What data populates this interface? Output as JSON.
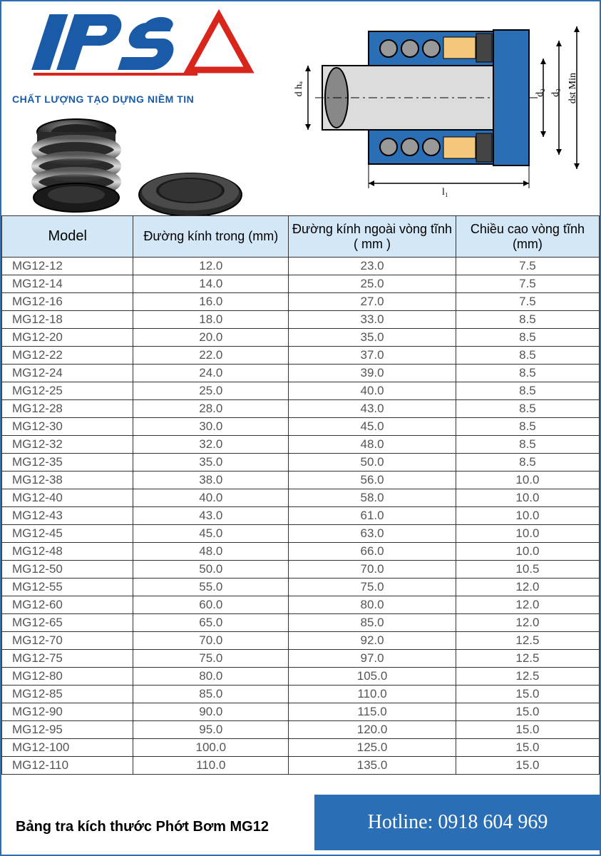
{
  "logo": {
    "text": "IPS",
    "tagline": "CHẤT LƯỢNG TẠO DỰNG NIỀM TIN",
    "text_color": "#1a5ba8",
    "triangle_color": "#d9261c"
  },
  "diagram": {
    "labels": {
      "d_ha": "d hₐ",
      "d2": "d₂",
      "d3": "d₃",
      "dst_min": "dst Min",
      "l1": "l₁"
    },
    "colors": {
      "body": "#2a6fb5",
      "shaft": "#c8c8c8",
      "outline": "#000000",
      "rollers": "#7a7a7a"
    }
  },
  "table": {
    "header_bg": "#d4e7f7",
    "columns": [
      "Model",
      "Đường kính trong (mm)",
      "Đường kính ngoài vòng tĩnh ( mm )",
      "Chiều cao vòng tĩnh (mm)"
    ],
    "col_widths": [
      "22%",
      "26%",
      "28%",
      "24%"
    ],
    "rows": [
      [
        "MG12-12",
        "12.0",
        "23.0",
        "7.5"
      ],
      [
        "MG12-14",
        "14.0",
        "25.0",
        "7.5"
      ],
      [
        "MG12-16",
        "16.0",
        "27.0",
        "7.5"
      ],
      [
        "MG12-18",
        "18.0",
        "33.0",
        "8.5"
      ],
      [
        "MG12-20",
        "20.0",
        "35.0",
        "8.5"
      ],
      [
        "MG12-22",
        "22.0",
        "37.0",
        "8.5"
      ],
      [
        "MG12-24",
        "24.0",
        "39.0",
        "8.5"
      ],
      [
        "MG12-25",
        "25.0",
        "40.0",
        "8.5"
      ],
      [
        "MG12-28",
        "28.0",
        "43.0",
        "8.5"
      ],
      [
        "MG12-30",
        "30.0",
        "45.0",
        "8.5"
      ],
      [
        "MG12-32",
        "32.0",
        "48.0",
        "8.5"
      ],
      [
        "MG12-35",
        "35.0",
        "50.0",
        "8.5"
      ],
      [
        "MG12-38",
        "38.0",
        "56.0",
        "10.0"
      ],
      [
        "MG12-40",
        "40.0",
        "58.0",
        "10.0"
      ],
      [
        "MG12-43",
        "43.0",
        "61.0",
        "10.0"
      ],
      [
        "MG12-45",
        "45.0",
        "63.0",
        "10.0"
      ],
      [
        "MG12-48",
        "48.0",
        "66.0",
        "10.0"
      ],
      [
        "MG12-50",
        "50.0",
        "70.0",
        "10.5"
      ],
      [
        "MG12-55",
        "55.0",
        "75.0",
        "12.0"
      ],
      [
        "MG12-60",
        "60.0",
        "80.0",
        "12.0"
      ],
      [
        "MG12-65",
        "65.0",
        "85.0",
        "12.0"
      ],
      [
        "MG12-70",
        "70.0",
        "92.0",
        "12.5"
      ],
      [
        "MG12-75",
        "75.0",
        "97.0",
        "12.5"
      ],
      [
        "MG12-80",
        "80.0",
        "105.0",
        "12.5"
      ],
      [
        "MG12-85",
        "85.0",
        "110.0",
        "15.0"
      ],
      [
        "MG12-90",
        "90.0",
        "115.0",
        "15.0"
      ],
      [
        "MG12-95",
        "95.0",
        "120.0",
        "15.0"
      ],
      [
        "MG12-100",
        "100.0",
        "125.0",
        "15.0"
      ],
      [
        "MG12-110",
        "110.0",
        "135.0",
        "15.0"
      ]
    ]
  },
  "footer": {
    "caption": "Bảng tra kích thước Phớt Bơm MG12",
    "hotline_label": "Hotline:",
    "hotline_number": "0918 604 969",
    "hotline_bg": "#2a6fb5",
    "hotline_text_color": "#ffffff"
  }
}
